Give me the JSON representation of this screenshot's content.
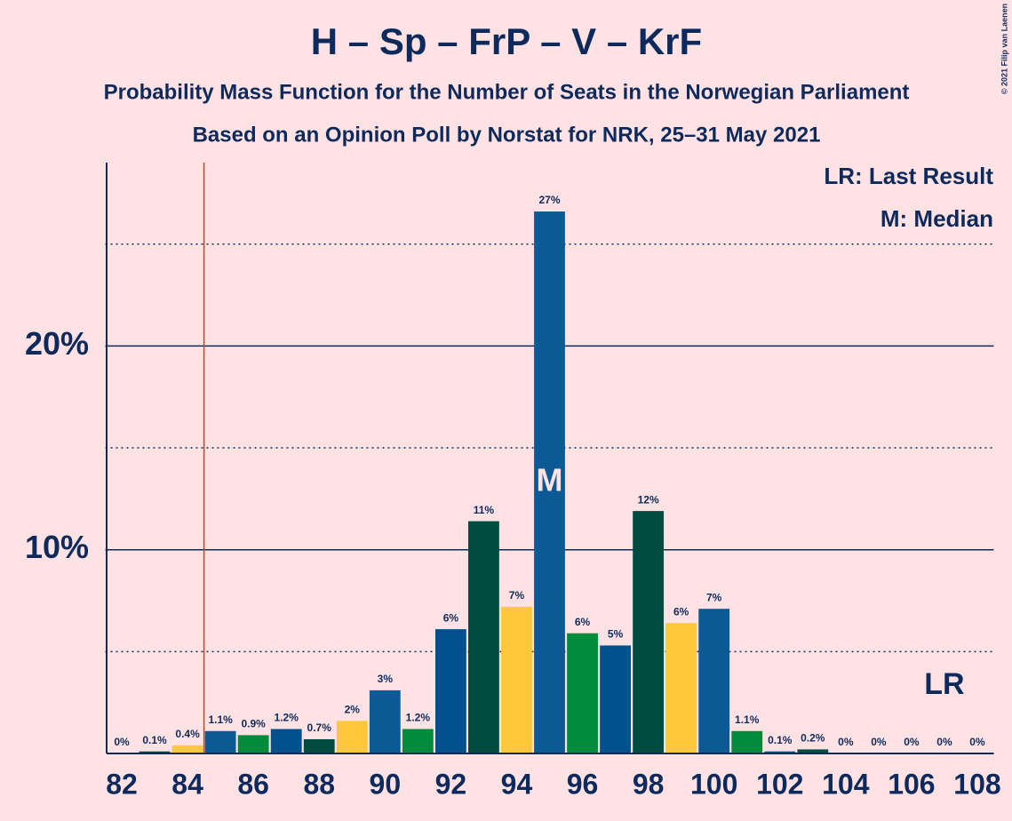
{
  "chart_data": {
    "type": "bar",
    "title": "H – Sp – FrP – V – KrF",
    "subtitle": "Probability Mass Function for the Number of Seats in the Norwegian Parliament",
    "subtitle2": "Based on an Opinion Poll by Norstat for NRK, 25–31 May 2021",
    "copyright": "© 2021 Filip van Laenen",
    "legend": [
      "LR: Last Result",
      "M: Median"
    ],
    "x": [
      82,
      83,
      84,
      85,
      86,
      87,
      88,
      89,
      90,
      91,
      92,
      93,
      94,
      95,
      96,
      97,
      98,
      99,
      100,
      101,
      102,
      103,
      104,
      105,
      106,
      107,
      108
    ],
    "values": [
      0,
      0.1,
      0.4,
      1.1,
      0.9,
      1.2,
      0.7,
      1.6,
      3.1,
      1.2,
      6.1,
      11.4,
      7.2,
      26.6,
      5.9,
      5.3,
      11.9,
      6.4,
      7.1,
      1.1,
      0.1,
      0.2,
      0,
      0,
      0,
      0,
      0
    ],
    "value_labels": [
      "0%",
      "0.1%",
      "0.4%",
      "1.1%",
      "0.9%",
      "1.2%",
      "0.7%",
      "2%",
      "3%",
      "1.2%",
      "6%",
      "11%",
      "7%",
      "27%",
      "6%",
      "5%",
      "12%",
      "6%",
      "7%",
      "1.1%",
      "0.1%",
      "0.2%",
      "0%",
      "0%",
      "0%",
      "0%",
      "0%"
    ],
    "colors": [
      "#0b5a96",
      "#004c3f",
      "#ffc83a",
      "#0b5a96",
      "#008c3a",
      "#00508e",
      "#004c3f",
      "#ffc83a",
      "#0b5a96",
      "#008c3a",
      "#00508e",
      "#004c3f",
      "#ffc83a",
      "#0b5a96",
      "#008c3a",
      "#00508e",
      "#004c3f",
      "#ffc83a",
      "#0b5a96",
      "#008c3a",
      "#00508e",
      "#004c3f",
      "#ffc83a",
      "#0b5a96",
      "#008c3a",
      "#00508e",
      "#004c3f"
    ],
    "xlim": [
      81.5,
      108.5
    ],
    "xticks": [
      82,
      84,
      86,
      88,
      90,
      92,
      94,
      96,
      98,
      100,
      102,
      104,
      106,
      108
    ],
    "ylim": [
      0,
      29
    ],
    "yticks": [
      {
        "value": 10,
        "label": "10%"
      },
      {
        "value": 20,
        "label": "20%"
      }
    ],
    "minor_yticks": [
      5,
      15,
      25
    ],
    "last_result": 84.5,
    "last_result_label": "LR",
    "median": 95,
    "median_label": "M"
  }
}
